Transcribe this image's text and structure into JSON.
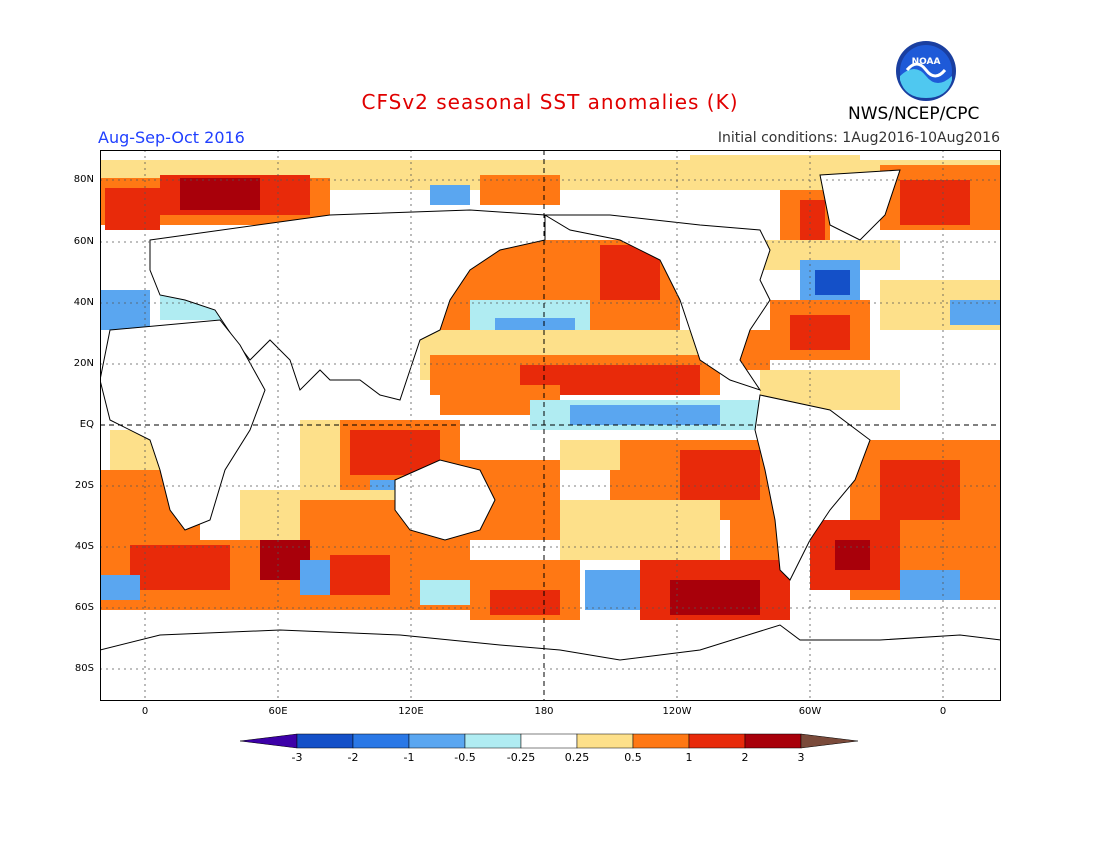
{
  "title": "CFSv2 seasonal SST anomalies (K)",
  "period": "Aug-Sep-Oct 2016",
  "initial_conditions": "Initial conditions: 1Aug2016-10Aug2016",
  "agency": "NWS/NCEP/CPC",
  "logo_text": "NOAA",
  "lat_labels": [
    "80N",
    "60N",
    "40N",
    "20N",
    "EQ",
    "20S",
    "40S",
    "60S",
    "80S"
  ],
  "lon_labels": [
    "0",
    "60E",
    "120E",
    "180",
    "120W",
    "60W",
    "0"
  ],
  "colorbar": {
    "ticks": [
      "-3",
      "-2",
      "-1",
      "-0.5",
      "-0.25",
      "0.25",
      "0.5",
      "1",
      "2",
      "3"
    ],
    "colors": [
      "#3d00a8",
      "#1450c8",
      "#2a78e6",
      "#5aa6f0",
      "#b0ecf2",
      "#ffffff",
      "#fde08a",
      "#ff7814",
      "#e82a0a",
      "#a8000a",
      "#7a4a3a"
    ]
  },
  "palette": {
    "land": "#ffffff",
    "weak_warm": "#fde08a",
    "warm": "#ff7814",
    "strong_warm": "#e82a0a",
    "very_warm": "#a8000a",
    "weak_cool": "#b0ecf2",
    "cool": "#5aa6f0",
    "strong_cool": "#1450c8"
  }
}
